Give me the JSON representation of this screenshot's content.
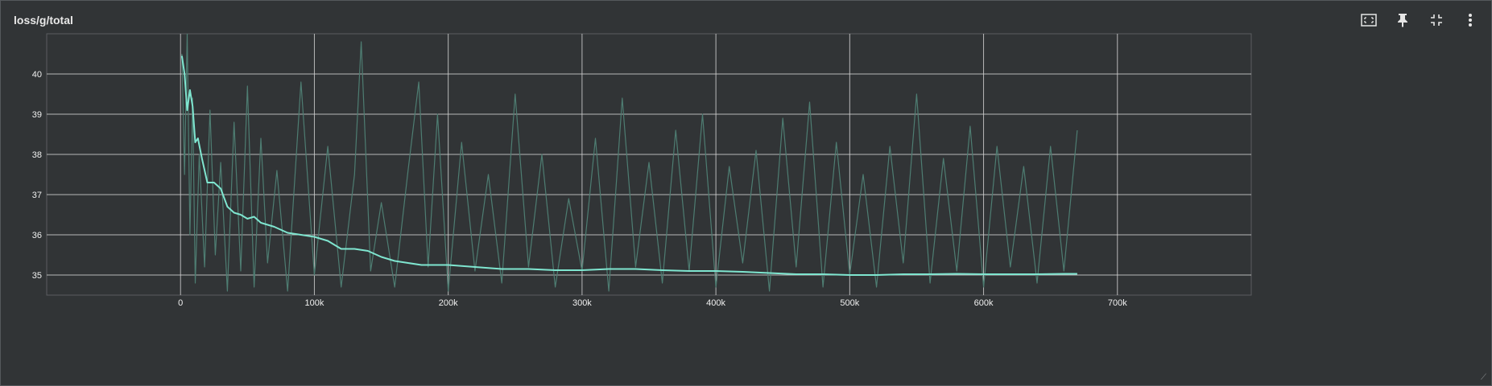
{
  "card": {
    "title": "loss/g/total"
  },
  "toolbar": {
    "icons": [
      "fit-domain-icon",
      "pin-icon",
      "collapse-icon",
      "more-vert-icon"
    ]
  },
  "colors": {
    "background": "#313436",
    "grid": "#cfcfcf",
    "raw_line": "#4e7d72",
    "smoothed_line": "#7fe6d0",
    "text": "#f0f0f0"
  },
  "chart_data": {
    "type": "line",
    "title": "loss/g/total",
    "xlabel": "",
    "ylabel": "",
    "xlim": [
      -100000,
      800000
    ],
    "ylim": [
      34.5,
      41
    ],
    "x_ticks": [
      0,
      100000,
      200000,
      300000,
      400000,
      500000,
      600000,
      700000
    ],
    "x_tick_labels": [
      "0",
      "100k",
      "200k",
      "300k",
      "400k",
      "500k",
      "600k",
      "700k"
    ],
    "y_ticks": [
      35,
      36,
      37,
      38,
      39,
      40
    ],
    "y_tick_labels": [
      "35",
      "36",
      "37",
      "38",
      "39",
      "40"
    ],
    "grid": true,
    "legend": "none",
    "series": [
      {
        "role": "raw",
        "x": [
          1000,
          3000,
          5000,
          7000,
          9000,
          11000,
          14000,
          18000,
          22000,
          26000,
          30000,
          35000,
          40000,
          45000,
          50000,
          55000,
          60000,
          65000,
          72000,
          80000,
          90000,
          100000,
          110000,
          120000,
          130000,
          135000,
          142000,
          150000,
          160000,
          170000,
          178000,
          185000,
          192000,
          200000,
          210000,
          220000,
          230000,
          240000,
          250000,
          260000,
          270000,
          280000,
          290000,
          300000,
          310000,
          320000,
          330000,
          340000,
          350000,
          360000,
          370000,
          380000,
          390000,
          400000,
          410000,
          420000,
          430000,
          440000,
          450000,
          460000,
          470000,
          480000,
          490000,
          500000,
          510000,
          520000,
          530000,
          540000,
          550000,
          560000,
          570000,
          580000,
          590000,
          600000,
          610000,
          620000,
          630000,
          640000,
          650000,
          660000,
          670000
        ],
        "y": [
          40.5,
          37.5,
          41,
          36,
          39.4,
          34.8,
          38,
          35.2,
          39.1,
          35.5,
          37.8,
          34.6,
          38.8,
          35.1,
          39.7,
          34.7,
          38.4,
          35.3,
          37.6,
          34.6,
          39.8,
          35,
          38.2,
          34.7,
          37.5,
          40.8,
          35.1,
          36.8,
          34.7,
          37.6,
          39.8,
          35.2,
          39,
          34.6,
          38.3,
          35.1,
          37.5,
          34.8,
          39.5,
          35.2,
          38,
          34.7,
          36.9,
          35.1,
          38.4,
          34.6,
          39.4,
          35.2,
          37.8,
          34.8,
          38.6,
          35.1,
          39,
          34.7,
          37.7,
          35.3,
          38.1,
          34.6,
          38.9,
          35.2,
          39.3,
          34.7,
          38.3,
          35,
          37.5,
          34.7,
          38.2,
          35.3,
          39.5,
          34.8,
          37.9,
          35.1,
          38.7,
          34.7,
          38.2,
          35.2,
          37.7,
          34.8,
          38.2,
          35.1,
          38.6
        ]
      },
      {
        "role": "smoothed",
        "x": [
          1000,
          3000,
          5000,
          7000,
          9000,
          11000,
          13000,
          16000,
          20000,
          25000,
          30000,
          35000,
          40000,
          45000,
          50000,
          55000,
          60000,
          70000,
          80000,
          90000,
          100000,
          110000,
          120000,
          130000,
          140000,
          150000,
          160000,
          170000,
          180000,
          190000,
          200000,
          220000,
          240000,
          260000,
          280000,
          300000,
          320000,
          340000,
          360000,
          380000,
          400000,
          420000,
          440000,
          460000,
          480000,
          500000,
          520000,
          540000,
          560000,
          580000,
          600000,
          620000,
          640000,
          660000,
          670000
        ],
        "y": [
          40.45,
          40,
          39.1,
          39.6,
          39.2,
          38.3,
          38.4,
          37.9,
          37.3,
          37.3,
          37.15,
          36.7,
          36.55,
          36.5,
          36.4,
          36.45,
          36.3,
          36.2,
          36.05,
          36,
          35.95,
          35.85,
          35.65,
          35.65,
          35.6,
          35.45,
          35.35,
          35.3,
          35.25,
          35.25,
          35.25,
          35.2,
          35.15,
          35.15,
          35.12,
          35.12,
          35.15,
          35.15,
          35.12,
          35.1,
          35.1,
          35.08,
          35.05,
          35.02,
          35.02,
          35,
          35,
          35.02,
          35.02,
          35.03,
          35.02,
          35.02,
          35.02,
          35.03,
          35.03
        ]
      }
    ]
  }
}
